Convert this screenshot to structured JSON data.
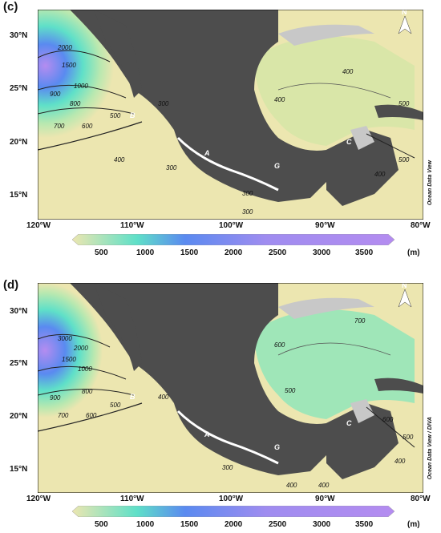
{
  "panels": [
    {
      "label": "(c)",
      "lat_labels": [
        "30°N",
        "25°N",
        "20°N",
        "15°N"
      ],
      "lon_labels": [
        "120°W",
        "110°W",
        "100°W",
        "90°W",
        "80°W"
      ],
      "credit": "Ocean Data View",
      "north": "N",
      "sites": [
        "A",
        "B",
        "C",
        "G"
      ],
      "contours": [
        "2000",
        "1500",
        "1000",
        "900",
        "800",
        "700",
        "600",
        "500",
        "400",
        "300",
        "300",
        "300",
        "300",
        "400",
        "400",
        "500",
        "500",
        "400"
      ],
      "colorbar_ticks": [
        "500",
        "1000",
        "1500",
        "2000",
        "2500",
        "3000",
        "3500"
      ],
      "unit": "(m)"
    },
    {
      "label": "(d)",
      "lat_labels": [
        "30°N",
        "25°N",
        "20°N",
        "15°N"
      ],
      "lon_labels": [
        "120°W",
        "110°W",
        "100°W",
        "90°W",
        "80°W"
      ],
      "credit": "Ocean Data View / DIVA",
      "north": "N",
      "sites": [
        "A",
        "B",
        "C",
        "G"
      ],
      "contours": [
        "3000",
        "2000",
        "1500",
        "1000",
        "900",
        "800",
        "700",
        "600",
        "500",
        "400",
        "300",
        "400",
        "400",
        "500",
        "600",
        "700",
        "600",
        "500",
        "400"
      ],
      "colorbar_ticks": [
        "500",
        "1000",
        "1500",
        "2000",
        "2500",
        "3000",
        "3500"
      ],
      "unit": "(m)"
    }
  ],
  "colors": {
    "land": "#4d4d4d",
    "shelf": "#c8c8c8",
    "shallow": "#ece6b0",
    "mid": "#9fe6b8",
    "deep_blue": "#5a8af0",
    "deepest": "#b48cf0"
  }
}
